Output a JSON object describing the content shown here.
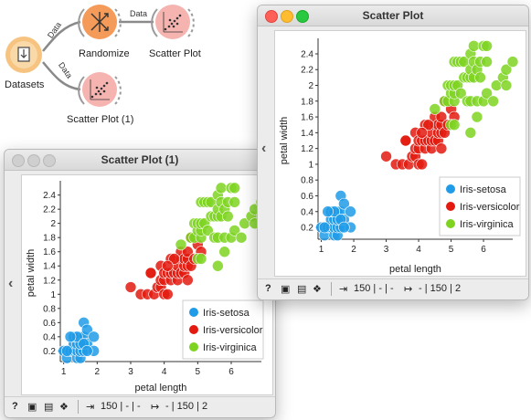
{
  "workflow": {
    "nodes": {
      "datasets": "Datasets",
      "randomize": "Randomize",
      "scatter_plot": "Scatter Plot",
      "scatter_plot_1": "Scatter Plot (1)"
    },
    "edges": {
      "data1": "Data",
      "data2": "Data",
      "data3": "Data"
    }
  },
  "colors": {
    "setosa": "#1f9be8",
    "versicolor": "#e31a0f",
    "virginica": "#7ed321",
    "node_orange": "#f6a55c",
    "node_pink": "#f6b4b0"
  },
  "window_main": {
    "title": "Scatter Plot",
    "status": {
      "in": "150 | - | -",
      "out": "- | 150 | 2"
    }
  },
  "window_second": {
    "title": "Scatter Plot (1)",
    "status": {
      "in": "150 | - | -",
      "out": "- | 150 | 2"
    }
  },
  "legend": [
    "Iris-setosa",
    "Iris-versicolor",
    "Iris-virginica"
  ],
  "chart_data": [
    {
      "type": "scatter",
      "title": "",
      "xlabel": "petal length",
      "ylabel": "petal width",
      "xticks": [
        1,
        2,
        3,
        4,
        5,
        6
      ],
      "yticks": [
        0.2,
        0.4,
        0.6,
        0.8,
        1,
        1.2,
        1.4,
        1.6,
        1.8,
        2,
        2.2,
        2.4
      ],
      "xlim": [
        0.9,
        6.9
      ],
      "ylim": [
        0.05,
        2.55
      ],
      "legend_position": "bottom-right",
      "series": [
        {
          "name": "Iris-setosa",
          "points": [
            [
              1.0,
              0.2
            ],
            [
              1.1,
              0.1
            ],
            [
              1.2,
              0.2
            ],
            [
              1.3,
              0.2
            ],
            [
              1.3,
              0.3
            ],
            [
              1.4,
              0.1
            ],
            [
              1.4,
              0.2
            ],
            [
              1.4,
              0.3
            ],
            [
              1.5,
              0.1
            ],
            [
              1.5,
              0.2
            ],
            [
              1.5,
              0.4
            ],
            [
              1.6,
              0.2
            ],
            [
              1.6,
              0.4
            ],
            [
              1.6,
              0.6
            ],
            [
              1.7,
              0.3
            ],
            [
              1.7,
              0.5
            ],
            [
              1.9,
              0.2
            ],
            [
              1.9,
              0.4
            ],
            [
              1.3,
              0.4
            ],
            [
              1.5,
              0.3
            ],
            [
              1.4,
              0.4
            ],
            [
              1.2,
              0.4
            ],
            [
              1.6,
              0.3
            ],
            [
              1.7,
              0.2
            ],
            [
              1.1,
              0.2
            ]
          ]
        },
        {
          "name": "Iris-versicolor",
          "points": [
            [
              3.0,
              1.1
            ],
            [
              3.3,
              1.0
            ],
            [
              3.5,
              1.0
            ],
            [
              3.6,
              1.3
            ],
            [
              3.7,
              1.0
            ],
            [
              3.8,
              1.1
            ],
            [
              3.9,
              1.1
            ],
            [
              3.9,
              1.2
            ],
            [
              3.9,
              1.4
            ],
            [
              4.0,
              1.0
            ],
            [
              4.0,
              1.2
            ],
            [
              4.0,
              1.3
            ],
            [
              4.1,
              1.0
            ],
            [
              4.1,
              1.3
            ],
            [
              4.2,
              1.2
            ],
            [
              4.2,
              1.3
            ],
            [
              4.2,
              1.5
            ],
            [
              4.3,
              1.3
            ],
            [
              4.4,
              1.2
            ],
            [
              4.4,
              1.3
            ],
            [
              4.4,
              1.4
            ],
            [
              4.5,
              1.3
            ],
            [
              4.5,
              1.5
            ],
            [
              4.5,
              1.6
            ],
            [
              4.6,
              1.3
            ],
            [
              4.6,
              1.4
            ],
            [
              4.6,
              1.5
            ],
            [
              4.7,
              1.2
            ],
            [
              4.7,
              1.4
            ],
            [
              4.7,
              1.5
            ],
            [
              4.7,
              1.6
            ],
            [
              4.8,
              1.4
            ],
            [
              4.8,
              1.8
            ],
            [
              4.9,
              1.5
            ],
            [
              5.0,
              1.7
            ],
            [
              5.1,
              1.6
            ],
            [
              3.6,
              1.3
            ],
            [
              4.3,
              1.5
            ],
            [
              4.1,
              1.4
            ]
          ]
        },
        {
          "name": "Iris-virginica",
          "points": [
            [
              4.5,
              1.7
            ],
            [
              4.8,
              1.8
            ],
            [
              4.9,
              1.8
            ],
            [
              4.9,
              2.0
            ],
            [
              5.0,
              1.5
            ],
            [
              5.0,
              1.9
            ],
            [
              5.0,
              2.0
            ],
            [
              5.1,
              1.5
            ],
            [
              5.1,
              1.8
            ],
            [
              5.1,
              1.9
            ],
            [
              5.1,
              2.0
            ],
            [
              5.1,
              2.3
            ],
            [
              5.2,
              2.0
            ],
            [
              5.2,
              2.3
            ],
            [
              5.3,
              1.9
            ],
            [
              5.3,
              2.3
            ],
            [
              5.4,
              2.1
            ],
            [
              5.4,
              2.3
            ],
            [
              5.5,
              1.8
            ],
            [
              5.5,
              2.1
            ],
            [
              5.6,
              1.4
            ],
            [
              5.6,
              1.8
            ],
            [
              5.6,
              2.1
            ],
            [
              5.6,
              2.2
            ],
            [
              5.6,
              2.4
            ],
            [
              5.7,
              2.1
            ],
            [
              5.7,
              2.3
            ],
            [
              5.7,
              2.5
            ],
            [
              5.8,
              1.6
            ],
            [
              5.8,
              1.8
            ],
            [
              5.8,
              2.2
            ],
            [
              5.9,
              2.1
            ],
            [
              5.9,
              2.3
            ],
            [
              6.0,
              1.8
            ],
            [
              6.0,
              2.5
            ],
            [
              6.1,
              1.9
            ],
            [
              6.1,
              2.3
            ],
            [
              6.1,
              2.5
            ],
            [
              6.3,
              1.8
            ],
            [
              6.4,
              2.0
            ],
            [
              6.6,
              2.1
            ],
            [
              6.7,
              2.0
            ],
            [
              6.7,
              2.2
            ],
            [
              6.9,
              2.3
            ]
          ]
        }
      ]
    }
  ]
}
